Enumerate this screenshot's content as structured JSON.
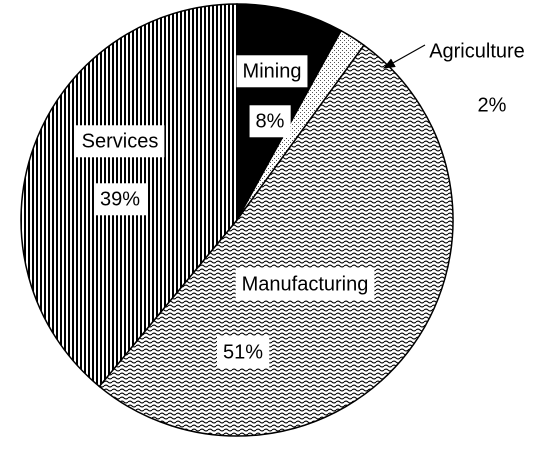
{
  "chart_data": {
    "type": "pie",
    "categories": [
      "Mining",
      "Agriculture",
      "Manufacturing",
      "Services"
    ],
    "values": [
      8,
      2,
      51,
      39
    ],
    "value_labels": [
      "8%",
      "2%",
      "51%",
      "39%"
    ]
  }
}
